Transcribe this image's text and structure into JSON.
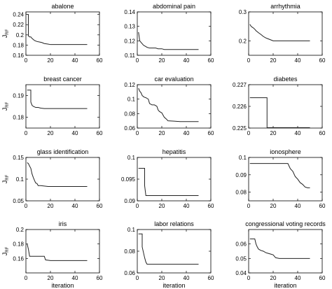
{
  "shared": {
    "ylabel_main": "J",
    "ylabel_sub": "RF",
    "xlabel": "iteration"
  },
  "chart_data": [
    {
      "type": "line",
      "title": "abalone",
      "xlim": [
        0,
        60
      ],
      "ylim": [
        0.16,
        0.245
      ],
      "xticks": [
        "0",
        "20",
        "40",
        "60"
      ],
      "xtick_values": [
        0,
        20,
        40,
        60
      ],
      "yticks": [
        "0.16",
        "0.18",
        "0.2",
        "0.22",
        "0.24"
      ],
      "ytick_values": [
        0.16,
        0.18,
        0.2,
        0.22,
        0.24
      ],
      "x": [
        1,
        2,
        2,
        3,
        4,
        5,
        6,
        7,
        9,
        11,
        13,
        15,
        18,
        20,
        25,
        30,
        35,
        40,
        45,
        50
      ],
      "y": [
        0.24,
        0.24,
        0.198,
        0.196,
        0.196,
        0.193,
        0.191,
        0.189,
        0.187,
        0.186,
        0.185,
        0.183,
        0.182,
        0.181,
        0.181,
        0.181,
        0.181,
        0.181,
        0.181,
        0.181
      ],
      "show_ylabel": true,
      "show_xlabel": false
    },
    {
      "type": "line",
      "title": "abdominal pain",
      "xlim": [
        0,
        60
      ],
      "ylim": [
        0.11,
        0.14
      ],
      "xticks": [
        "0",
        "20",
        "40",
        "60"
      ],
      "xtick_values": [
        0,
        20,
        40,
        60
      ],
      "yticks": [
        "0.11",
        "0.12",
        "0.13",
        "0.14"
      ],
      "ytick_values": [
        0.11,
        0.12,
        0.13,
        0.14
      ],
      "x": [
        1,
        2,
        3,
        4,
        5,
        6,
        7,
        8,
        10,
        12,
        15,
        17,
        20,
        22,
        25,
        30,
        35,
        40,
        45,
        50
      ],
      "y": [
        0.126,
        0.12,
        0.119,
        0.118,
        0.117,
        0.1165,
        0.116,
        0.1155,
        0.115,
        0.115,
        0.115,
        0.1145,
        0.1145,
        0.114,
        0.114,
        0.114,
        0.114,
        0.114,
        0.114,
        0.114
      ],
      "show_ylabel": false,
      "show_xlabel": false
    },
    {
      "type": "line",
      "title": "arrhythmia",
      "xlim": [
        0,
        60
      ],
      "ylim": [
        0.15,
        0.3
      ],
      "xticks": [
        "0",
        "20",
        "40",
        "60"
      ],
      "xtick_values": [
        0,
        20,
        40,
        60
      ],
      "yticks": [
        "0.2",
        "0.3"
      ],
      "ytick_values": [
        0.2,
        0.3
      ],
      "x": [
        1,
        2,
        3,
        4,
        5,
        6,
        8,
        10,
        12,
        14,
        17,
        20,
        25,
        30,
        35,
        40,
        45,
        50
      ],
      "y": [
        0.257,
        0.25,
        0.247,
        0.244,
        0.24,
        0.235,
        0.228,
        0.222,
        0.215,
        0.21,
        0.205,
        0.2,
        0.2,
        0.2,
        0.2,
        0.2,
        0.2,
        0.2
      ],
      "show_ylabel": false,
      "show_xlabel": false
    },
    {
      "type": "line",
      "title": "breast cancer",
      "xlim": [
        0,
        60
      ],
      "ylim": [
        0.175,
        0.195
      ],
      "xticks": [
        "0",
        "20",
        "40",
        "60"
      ],
      "xtick_values": [
        0,
        20,
        40,
        60
      ],
      "yticks": [
        "0.18",
        "0.19"
      ],
      "ytick_values": [
        0.18,
        0.19
      ],
      "x": [
        1,
        4,
        4,
        5,
        6,
        8,
        10,
        12,
        15,
        20,
        30,
        40,
        50
      ],
      "y": [
        0.1925,
        0.1925,
        0.187,
        0.1855,
        0.185,
        0.1845,
        0.1845,
        0.1842,
        0.184,
        0.184,
        0.184,
        0.184,
        0.184
      ],
      "show_ylabel": true,
      "show_xlabel": false
    },
    {
      "type": "line",
      "title": "car evaluation",
      "xlim": [
        0,
        60
      ],
      "ylim": [
        0.06,
        0.12
      ],
      "xticks": [
        "0",
        "20",
        "40",
        "60"
      ],
      "xtick_values": [
        0,
        20,
        40,
        60
      ],
      "yticks": [
        "0.06",
        "0.08",
        "0.1",
        "0.12"
      ],
      "ytick_values": [
        0.06,
        0.08,
        0.1,
        0.12
      ],
      "x": [
        1,
        2,
        3,
        4,
        5,
        6,
        7,
        8,
        9,
        10,
        12,
        14,
        16,
        17,
        18,
        19,
        20,
        22,
        24,
        25,
        30,
        35,
        40,
        45,
        50
      ],
      "y": [
        0.115,
        0.111,
        0.109,
        0.105,
        0.1035,
        0.1025,
        0.102,
        0.101,
        0.1,
        0.094,
        0.092,
        0.092,
        0.09,
        0.085,
        0.083,
        0.082,
        0.081,
        0.075,
        0.072,
        0.07,
        0.0695,
        0.069,
        0.069,
        0.069,
        0.069
      ],
      "show_ylabel": false,
      "show_xlabel": false
    },
    {
      "type": "line",
      "title": "diabetes",
      "xlim": [
        0,
        60
      ],
      "ylim": [
        0.225,
        0.227
      ],
      "xticks": [
        "0",
        "20",
        "40",
        "60"
      ],
      "xtick_values": [
        0,
        20,
        40,
        60
      ],
      "yticks": [
        "0.225",
        "0.226",
        "0.227"
      ],
      "ytick_values": [
        0.225,
        0.226,
        0.227
      ],
      "x": [
        1,
        15,
        15,
        20,
        30,
        40,
        50
      ],
      "y": [
        0.2264,
        0.2264,
        0.22502,
        0.22502,
        0.22502,
        0.22502,
        0.22502
      ],
      "show_ylabel": false,
      "show_xlabel": false
    },
    {
      "type": "line",
      "title": "glass identification",
      "xlim": [
        0,
        60
      ],
      "ylim": [
        0.05,
        0.15
      ],
      "xticks": [
        "0",
        "20",
        "40",
        "60"
      ],
      "xtick_values": [
        0,
        20,
        40,
        60
      ],
      "yticks": [
        "0.05",
        "0.1",
        "0.15"
      ],
      "ytick_values": [
        0.05,
        0.1,
        0.15
      ],
      "x": [
        1,
        2,
        3,
        4,
        5,
        6,
        7,
        8,
        9,
        10,
        12,
        15,
        18,
        20,
        25,
        30,
        35,
        40,
        45,
        50
      ],
      "y": [
        0.138,
        0.136,
        0.13,
        0.125,
        0.112,
        0.104,
        0.097,
        0.091,
        0.09,
        0.085,
        0.085,
        0.084,
        0.083,
        0.083,
        0.083,
        0.083,
        0.083,
        0.083,
        0.083,
        0.083
      ],
      "show_ylabel": true,
      "show_xlabel": false
    },
    {
      "type": "line",
      "title": "hepatitis",
      "xlim": [
        0,
        60
      ],
      "ylim": [
        0.09,
        0.1
      ],
      "xticks": [
        "0",
        "20",
        "40",
        "60"
      ],
      "xtick_values": [
        0,
        20,
        40,
        60
      ],
      "yticks": [
        "0.09",
        "0.095",
        "0.1"
      ],
      "ytick_values": [
        0.09,
        0.095,
        0.1
      ],
      "x": [
        1,
        6,
        6,
        7,
        10,
        20,
        30,
        40,
        50
      ],
      "y": [
        0.0975,
        0.0975,
        0.0935,
        0.0912,
        0.0912,
        0.0912,
        0.0912,
        0.0912,
        0.0912
      ],
      "show_ylabel": false,
      "show_xlabel": false
    },
    {
      "type": "line",
      "title": "ionosphere",
      "xlim": [
        0,
        60
      ],
      "ylim": [
        0.075,
        0.1
      ],
      "xticks": [
        "0",
        "20",
        "40",
        "60"
      ],
      "xtick_values": [
        0,
        20,
        40,
        60
      ],
      "yticks": [
        "0.08",
        "0.09",
        "0.1"
      ],
      "ytick_values": [
        0.08,
        0.09,
        0.1
      ],
      "x": [
        1,
        32,
        34,
        36,
        38,
        40,
        42,
        44,
        46,
        48,
        50
      ],
      "y": [
        0.0965,
        0.0965,
        0.0935,
        0.092,
        0.089,
        0.0875,
        0.0855,
        0.0845,
        0.083,
        0.0825,
        0.0825
      ],
      "show_ylabel": false,
      "show_xlabel": false
    },
    {
      "type": "line",
      "title": "iris",
      "xlim": [
        0,
        60
      ],
      "ylim": [
        0.14,
        0.2
      ],
      "xticks": [
        "0",
        "20",
        "40",
        "60"
      ],
      "xtick_values": [
        0,
        20,
        40,
        60
      ],
      "yticks": [
        "0.16",
        "0.18",
        "0.2"
      ],
      "ytick_values": [
        0.16,
        0.18,
        0.2
      ],
      "x": [
        1,
        2,
        3,
        4,
        15,
        16,
        20,
        30,
        40,
        50
      ],
      "y": [
        0.18,
        0.173,
        0.163,
        0.163,
        0.163,
        0.158,
        0.157,
        0.157,
        0.157,
        0.157
      ],
      "show_ylabel": true,
      "show_xlabel": true
    },
    {
      "type": "line",
      "title": "labor relations",
      "xlim": [
        0,
        60
      ],
      "ylim": [
        0.06,
        0.1
      ],
      "xticks": [
        "0",
        "20",
        "40",
        "60"
      ],
      "xtick_values": [
        0,
        20,
        40,
        60
      ],
      "yticks": [
        "0.06",
        "0.08",
        "0.1"
      ],
      "ytick_values": [
        0.06,
        0.08,
        0.1
      ],
      "x": [
        1,
        4,
        4,
        5,
        6,
        7,
        8,
        10,
        20,
        30,
        40,
        50
      ],
      "y": [
        0.096,
        0.096,
        0.084,
        0.079,
        0.074,
        0.07,
        0.068,
        0.068,
        0.068,
        0.068,
        0.068,
        0.068
      ],
      "show_ylabel": false,
      "show_xlabel": true
    },
    {
      "type": "line",
      "title": "congressional voting records",
      "xlim": [
        0,
        60
      ],
      "ylim": [
        0.04,
        0.07
      ],
      "xticks": [
        "0",
        "20",
        "40",
        "60"
      ],
      "xtick_values": [
        0,
        20,
        40,
        60
      ],
      "yticks": [
        "0.04",
        "0.05",
        "0.06"
      ],
      "ytick_values": [
        0.04,
        0.05,
        0.06
      ],
      "x": [
        1,
        5,
        6,
        7,
        8,
        9,
        10,
        12,
        14,
        16,
        18,
        20,
        22,
        25,
        30,
        35,
        40,
        45,
        50
      ],
      "y": [
        0.0635,
        0.0635,
        0.06,
        0.058,
        0.0565,
        0.056,
        0.0555,
        0.055,
        0.054,
        0.0535,
        0.053,
        0.0525,
        0.0505,
        0.05,
        0.05,
        0.05,
        0.05,
        0.05,
        0.05
      ],
      "show_ylabel": false,
      "show_xlabel": true
    }
  ]
}
